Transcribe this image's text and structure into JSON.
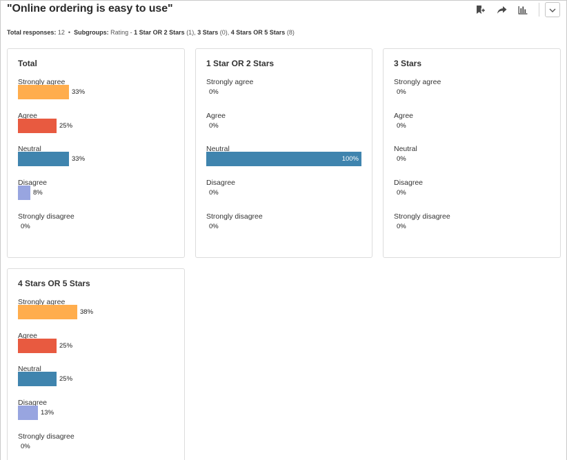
{
  "title": "\"Online ordering is easy to use\"",
  "toolbar": {
    "icons": [
      "bookmark-add-icon",
      "share-icon",
      "bar-chart-icon",
      "chevron-down-icon"
    ]
  },
  "summary": {
    "total_label": "Total responses:",
    "total_value": "12",
    "subgroups_label": "Subgroups:",
    "subgroups_prefix": "Rating -",
    "groups": [
      {
        "name": "1 Star OR 2 Stars",
        "count": "(1)"
      },
      {
        "name": "3 Stars",
        "count": "(0)"
      },
      {
        "name": "4 Stars OR 5 Stars",
        "count": "(8)"
      }
    ]
  },
  "colors": {
    "strongly_agree": "#ffad4d",
    "agree": "#e85a40",
    "neutral": "#3f84ae",
    "disagree": "#98a5e0",
    "strongly_disagree": "#b0b0b0"
  },
  "cards": [
    {
      "title": "Total",
      "rows": [
        {
          "label": "Strongly agree",
          "value": 33,
          "pct": "33%",
          "color": "#ffad4d"
        },
        {
          "label": "Agree",
          "value": 25,
          "pct": "25%",
          "color": "#e85a40"
        },
        {
          "label": "Neutral",
          "value": 33,
          "pct": "33%",
          "color": "#3f84ae"
        },
        {
          "label": "Disagree",
          "value": 8,
          "pct": "8%",
          "color": "#98a5e0"
        },
        {
          "label": "Strongly disagree",
          "value": 0,
          "pct": "0%",
          "color": "#b0b0b0"
        }
      ]
    },
    {
      "title": "1 Star OR 2 Stars",
      "rows": [
        {
          "label": "Strongly agree",
          "value": 0,
          "pct": "0%",
          "color": "#ffad4d"
        },
        {
          "label": "Agree",
          "value": 0,
          "pct": "0%",
          "color": "#e85a40"
        },
        {
          "label": "Neutral",
          "value": 100,
          "pct": "100%",
          "color": "#3f84ae"
        },
        {
          "label": "Disagree",
          "value": 0,
          "pct": "0%",
          "color": "#98a5e0"
        },
        {
          "label": "Strongly disagree",
          "value": 0,
          "pct": "0%",
          "color": "#b0b0b0"
        }
      ]
    },
    {
      "title": "3 Stars",
      "rows": [
        {
          "label": "Strongly agree",
          "value": 0,
          "pct": "0%",
          "color": "#ffad4d"
        },
        {
          "label": "Agree",
          "value": 0,
          "pct": "0%",
          "color": "#e85a40"
        },
        {
          "label": "Neutral",
          "value": 0,
          "pct": "0%",
          "color": "#3f84ae"
        },
        {
          "label": "Disagree",
          "value": 0,
          "pct": "0%",
          "color": "#98a5e0"
        },
        {
          "label": "Strongly disagree",
          "value": 0,
          "pct": "0%",
          "color": "#b0b0b0"
        }
      ]
    },
    {
      "title": "4 Stars OR 5 Stars",
      "rows": [
        {
          "label": "Strongly agree",
          "value": 38,
          "pct": "38%",
          "color": "#ffad4d"
        },
        {
          "label": "Agree",
          "value": 25,
          "pct": "25%",
          "color": "#e85a40"
        },
        {
          "label": "Neutral",
          "value": 25,
          "pct": "25%",
          "color": "#3f84ae"
        },
        {
          "label": "Disagree",
          "value": 13,
          "pct": "13%",
          "color": "#98a5e0"
        },
        {
          "label": "Strongly disagree",
          "value": 0,
          "pct": "0%",
          "color": "#b0b0b0"
        }
      ]
    }
  ]
}
